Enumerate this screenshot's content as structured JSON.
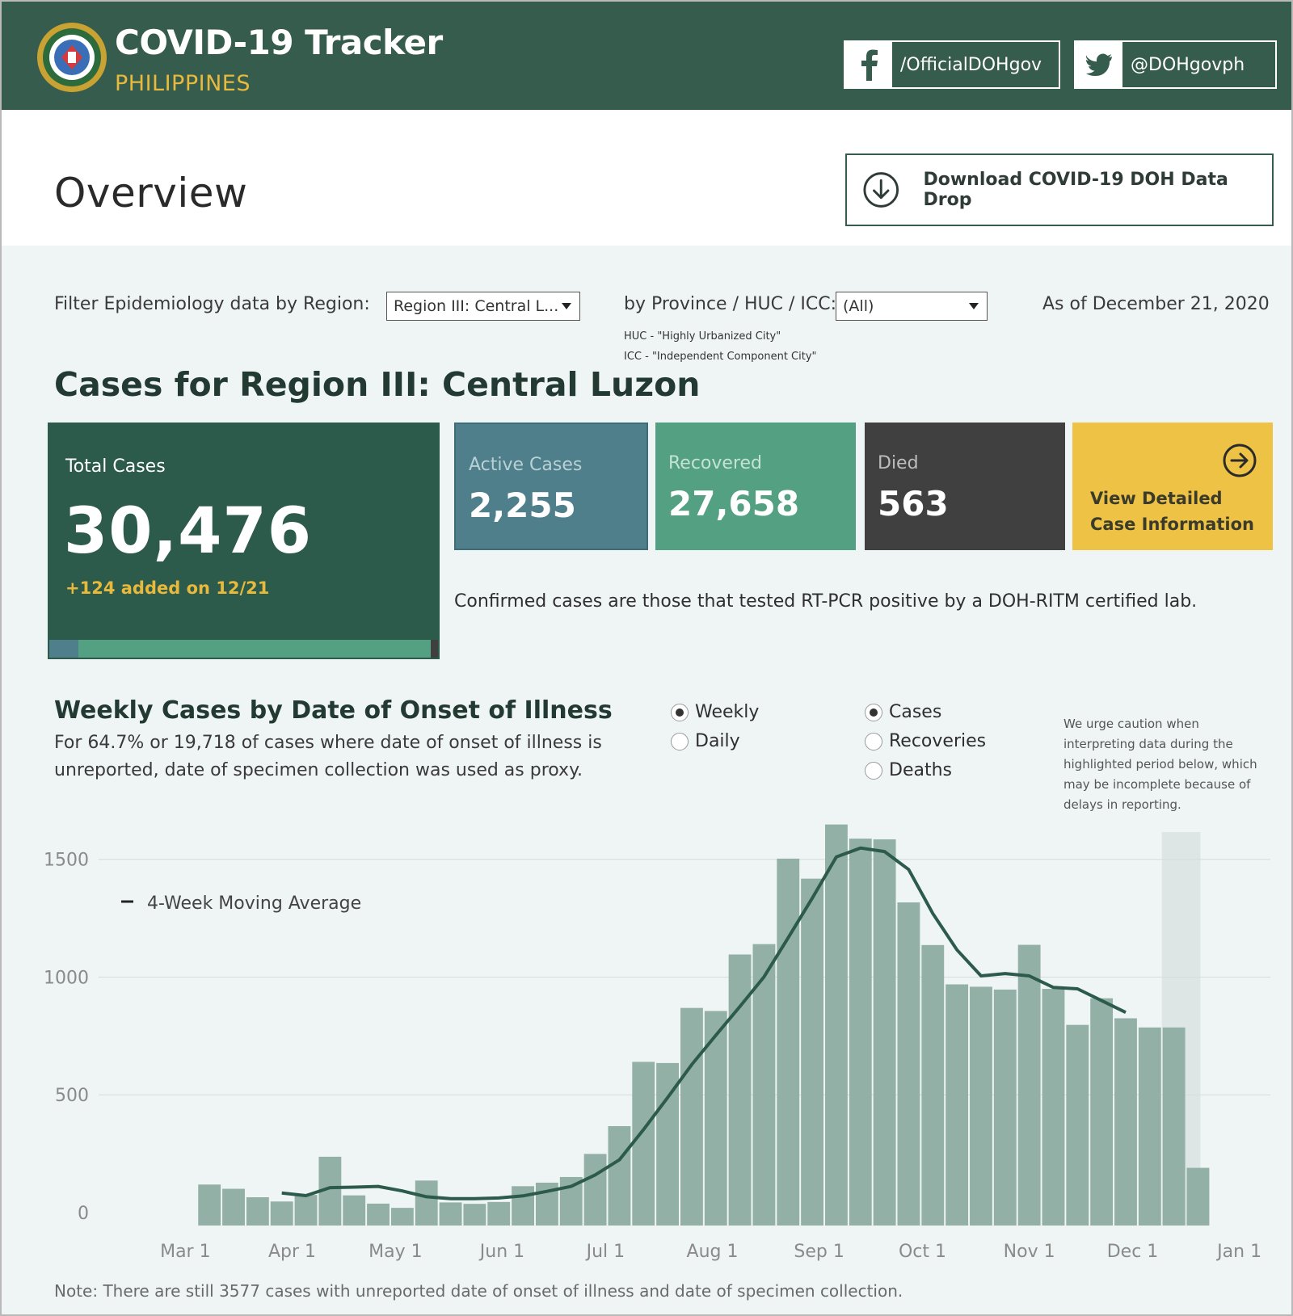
{
  "header": {
    "title": "COVID-19 Tracker",
    "subtitle": "PHILIPPINES",
    "facebook": "/OfficialDOHgov",
    "twitter": "@DOHgovph",
    "bg_color": "#365c4e",
    "accent_color": "#e8b93a"
  },
  "overview": {
    "title": "Overview",
    "download_label": "Download COVID-19 DOH Data Drop"
  },
  "filters": {
    "region_label": "Filter Epidemiology data by Region:",
    "region_value": "Region III: Central L...",
    "province_label": "by Province / HUC / ICC:",
    "province_value": "(All)",
    "huc_note": "HUC - \"Highly Urbanized City\"",
    "icc_note": "ICC - \"Independent Component City\"",
    "as_of": "As of December 21, 2020"
  },
  "region_title": "Cases for Region III: Central Luzon",
  "stats": {
    "total_label": "Total Cases",
    "total_value": "30,476",
    "added": "+124 added on 12/21",
    "active_label": "Active Cases",
    "active_value": "2,255",
    "recovered_label": "Recovered",
    "recovered_value": "27,658",
    "died_label": "Died",
    "died_value": "563",
    "detail_label": "View Detailed Case Information",
    "confirmed_note": "Confirmed cases are those that tested RT-PCR positive by a DOH-RITM certified lab."
  },
  "colors": {
    "active": "#4f7f8b",
    "recovered": "#53a082",
    "died": "#404040",
    "detail": "#eec245",
    "bars": "#92b0a5",
    "line": "#2c5a4b"
  },
  "chart_section": {
    "title": "Weekly Cases by Date of Onset of Illness",
    "subtitle": "For 64.7% or 19,718 of cases where date of onset of illness is unreported, date of specimen collection was used as proxy.",
    "radio_period": [
      {
        "label": "Weekly",
        "selected": true
      },
      {
        "label": "Daily",
        "selected": false
      }
    ],
    "radio_metric": [
      {
        "label": "Cases",
        "selected": true
      },
      {
        "label": "Recoveries",
        "selected": false
      },
      {
        "label": "Deaths",
        "selected": false
      }
    ],
    "caution": "We urge caution when interpreting data during the highlighted period below, which may be incomplete because of delays in reporting.",
    "footnote": "Note: There are still 3577 cases with unreported date of onset of illness and date of specimen collection."
  },
  "chart_data": {
    "type": "bar",
    "title": "Weekly Cases by Date of Onset of Illness",
    "x_tick_labels": [
      "Mar 1",
      "Apr 1",
      "May 1",
      "Jun 1",
      "Jul 1",
      "Aug 1",
      "Sep 1",
      "Oct 1",
      "Nov 1",
      "Dec 1",
      "Jan 1"
    ],
    "y_ticks": [
      0,
      500,
      1000,
      1500
    ],
    "ylim": [
      -55,
      1650
    ],
    "grid": true,
    "weeks": [
      "2020-03-08",
      "2020-03-15",
      "2020-03-22",
      "2020-03-29",
      "2020-04-05",
      "2020-04-12",
      "2020-04-19",
      "2020-04-26",
      "2020-05-03",
      "2020-05-10",
      "2020-05-17",
      "2020-05-24",
      "2020-05-31",
      "2020-06-07",
      "2020-06-14",
      "2020-06-21",
      "2020-06-28",
      "2020-07-05",
      "2020-07-12",
      "2020-07-19",
      "2020-07-26",
      "2020-08-02",
      "2020-08-09",
      "2020-08-16",
      "2020-08-23",
      "2020-08-30",
      "2020-09-06",
      "2020-09-13",
      "2020-09-20",
      "2020-09-27",
      "2020-10-04",
      "2020-10-11",
      "2020-10-18",
      "2020-10-25",
      "2020-11-01",
      "2020-11-08",
      "2020-11-15",
      "2020-11-22",
      "2020-11-29",
      "2020-12-06",
      "2020-12-13",
      "2020-12-20"
    ],
    "series": [
      {
        "name": "Cases",
        "values": [
          119,
          101,
          65,
          47,
          75,
          237,
          73,
          38,
          20,
          136,
          43,
          37,
          45,
          112,
          127,
          151,
          249,
          367,
          640,
          635,
          869,
          856,
          1096,
          1140,
          1503,
          1418,
          1648,
          1588,
          1585,
          1317,
          1136,
          969,
          959,
          947,
          1137,
          950,
          797,
          910,
          825,
          786,
          786,
          190
        ]
      },
      {
        "name": "4-Week Moving Average",
        "values": [
          null,
          null,
          null,
          83,
          72,
          106,
          108,
          111,
          92,
          67,
          59,
          59,
          62,
          71,
          90,
          111,
          160,
          224,
          352,
          488,
          628,
          753,
          875,
          1001,
          1167,
          1335,
          1510,
          1548,
          1533,
          1457,
          1270,
          1116,
          1005,
          1015,
          1005,
          956,
          950,
          900,
          850,
          null,
          null,
          null
        ]
      }
    ],
    "highlight": {
      "from": "2020-12-13",
      "to": "2020-12-20"
    }
  }
}
